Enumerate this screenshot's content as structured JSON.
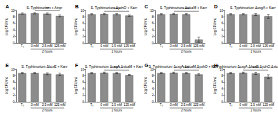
{
  "chart_data": [
    {
      "type": "bar",
      "panel": "A",
      "title": "S. Typhimurium + Ampʳ",
      "ylabel": "Log CFU/mL",
      "categories": [
        "T₀",
        "0 mM",
        "2.5 mM",
        "125 mM"
      ],
      "values": [
        9.0,
        9.1,
        9.0,
        8.3
      ],
      "errors": [
        0.2,
        0.2,
        0.2,
        0.3
      ],
      "color": "#8c8c8c",
      "ylim": [
        0,
        10
      ],
      "yticks": [
        0,
        2,
        4,
        6,
        8,
        10
      ],
      "group": {
        "label": "2 hours",
        "from": 1,
        "to": 3
      },
      "significance": [
        {
          "label": "**",
          "from": 1,
          "to": 3
        }
      ]
    },
    {
      "type": "bar",
      "panel": "B",
      "title": "S. Typhimurium ΔyohO + Kanʳ",
      "ylabel": "Log CFU/mL",
      "categories": [
        "T₀",
        "0 mM",
        "2.5 mM",
        "125 mM"
      ],
      "values": [
        8.8,
        8.9,
        8.8,
        8.4
      ],
      "errors": [
        0.2,
        0.2,
        0.2,
        0.2
      ],
      "color": "#8c8c8c",
      "ylim": [
        0,
        10
      ],
      "yticks": [
        0,
        2,
        4,
        6,
        8,
        10
      ],
      "group": {
        "label": "2 hours",
        "from": 1,
        "to": 3
      },
      "significance": [
        {
          "label": "****",
          "from": 1,
          "to": 3
        }
      ]
    },
    {
      "type": "bar",
      "panel": "C",
      "title": "S. Typhimurium ΔsicaM + Kanʳ",
      "ylabel": "Log CFU/mL",
      "categories": [
        "T₀",
        "0 mM",
        "2.5 mM",
        "125 mM"
      ],
      "values": [
        8.8,
        8.9,
        8.8,
        1.0
      ],
      "errors": [
        0.2,
        0.2,
        0.2,
        0.8
      ],
      "color": "#8c8c8c",
      "ylim": [
        0,
        10
      ],
      "yticks": [
        0,
        2,
        4,
        6,
        8,
        10
      ],
      "group": {
        "label": "2 hours",
        "from": 1,
        "to": 3
      },
      "significance": [
        {
          "label": "****",
          "from": 1,
          "to": 3
        }
      ]
    },
    {
      "type": "bar",
      "panel": "D",
      "title": "S. Typhimurium ΔcsgA + Kanʳ",
      "ylabel": "Log CFU/mL",
      "categories": [
        "T₀",
        "0 mM",
        "2.5 mM",
        "125 mM"
      ],
      "values": [
        8.8,
        8.8,
        8.7,
        8.2
      ],
      "errors": [
        0.2,
        0.2,
        0.3,
        0.6
      ],
      "color": "#8c8c8c",
      "ylim": [
        0,
        10
      ],
      "yticks": [
        0,
        2,
        4,
        6,
        8,
        10
      ],
      "group": {
        "label": "2 hours",
        "from": 1,
        "to": 3
      },
      "significance": []
    },
    {
      "type": "bar",
      "panel": "E",
      "title": "S. Typhimurium ΔbcsE + Kanʳ",
      "ylabel": "Log CFU/mL",
      "categories": [
        "T₀",
        "0 mM",
        "2.5 mM",
        "125 mM"
      ],
      "values": [
        8.8,
        8.8,
        8.6,
        8.4
      ],
      "errors": [
        0.2,
        0.2,
        0.3,
        0.4
      ],
      "color": "#8c8c8c",
      "ylim": [
        0,
        10
      ],
      "yticks": [
        0,
        2,
        4,
        6,
        8,
        10
      ],
      "group": {
        "label": "2 hours",
        "from": 1,
        "to": 3
      },
      "significance": []
    },
    {
      "type": "bar",
      "panel": "F",
      "title": "S. Typhimurium ΔcsgA,ΔsicaM + Kanʳ",
      "ylabel": "Log CFU/mL",
      "categories": [
        "T₀",
        "0 mM",
        "2.5 mM",
        "125 mM"
      ],
      "values": [
        8.8,
        8.9,
        8.8,
        8.2
      ],
      "errors": [
        0.2,
        0.2,
        0.2,
        0.2
      ],
      "color": "#8c8c8c",
      "ylim": [
        0,
        10
      ],
      "yticks": [
        0,
        2,
        4,
        6,
        8,
        10
      ],
      "group": {
        "label": "2 hours",
        "from": 1,
        "to": 3
      },
      "significance": [
        {
          "label": "****",
          "from": 1,
          "to": 3
        }
      ]
    },
    {
      "type": "bar",
      "panel": "G",
      "title": "S. Typhimurium ΔcsgA,ΔsicaM,ΔyohO + Kanʳ",
      "ylabel": "Log CFU/mL",
      "categories": [
        "T₀",
        "0 mM",
        "2.5 mM",
        "125 mM"
      ],
      "values": [
        8.8,
        8.9,
        8.8,
        8.4
      ],
      "errors": [
        0.2,
        0.2,
        0.2,
        0.2
      ],
      "color": "#8c8c8c",
      "ylim": [
        0,
        10
      ],
      "yticks": [
        0,
        2,
        4,
        6,
        8,
        10
      ],
      "group": {
        "label": "2 hours",
        "from": 1,
        "to": 3
      },
      "significance": [
        {
          "label": "****",
          "from": 1,
          "to": 3
        }
      ]
    },
    {
      "type": "bar",
      "panel": "H",
      "title": "S. Typhimurium ΔcsgA,ΔbcsE,ΔyohO,ΔsicaM + Kanʳ",
      "ylabel": "Log CFU/mL",
      "categories": [
        "T₀",
        "0 mM",
        "2.5 mM",
        "125 mM"
      ],
      "values": [
        8.8,
        8.9,
        8.7,
        7.7
      ],
      "errors": [
        0.2,
        0.2,
        0.3,
        0.6
      ],
      "color": "#8c8c8c",
      "ylim": [
        0,
        10
      ],
      "yticks": [
        0,
        2,
        4,
        6,
        8,
        10
      ],
      "group": {
        "label": "2 hours",
        "from": 1,
        "to": 3
      },
      "significance": [
        {
          "label": "****",
          "from": 1,
          "to": 3
        }
      ]
    }
  ]
}
